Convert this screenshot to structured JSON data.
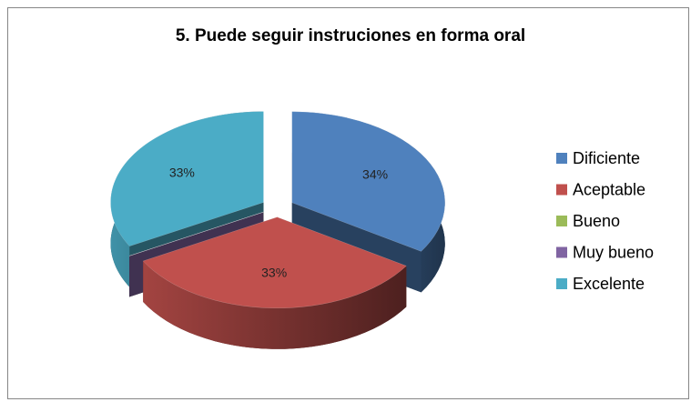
{
  "chart_data": {
    "type": "pie",
    "title": "5. Puede seguir instruciones en forma oral",
    "categories": [
      "Dificiente",
      "Aceptable",
      "Bueno",
      "Muy bueno",
      "Excelente"
    ],
    "values": [
      34,
      33,
      0,
      0,
      33
    ],
    "value_labels": [
      "34%",
      "33%",
      null,
      null,
      "33%"
    ],
    "colors": [
      "#4f81bd",
      "#c0504d",
      "#9bbb59",
      "#8064a2",
      "#4bacc6"
    ],
    "legend": "right"
  }
}
